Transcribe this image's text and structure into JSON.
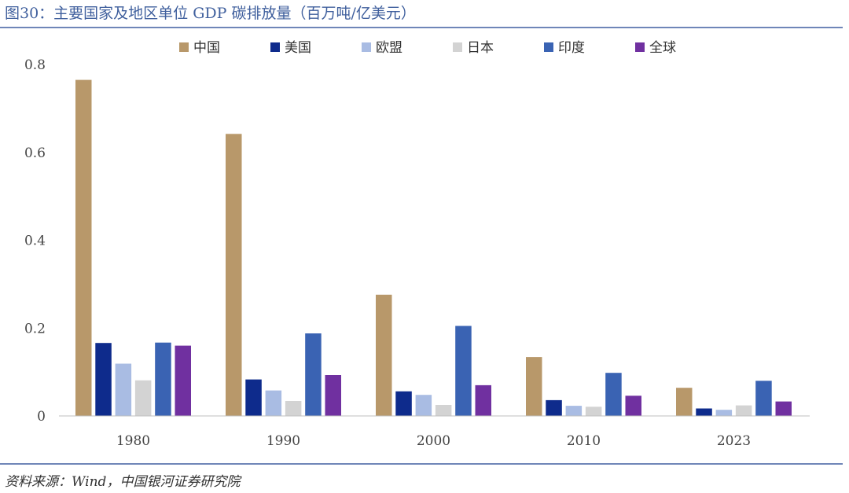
{
  "title": "图30：主要国家及地区单位 GDP 碳排放量（百万吨/亿美元）",
  "source": "资料来源：Wind，中国银河证券研究院",
  "chart_data": {
    "type": "bar",
    "title": "图30：主要国家及地区单位 GDP 碳排放量（百万吨/亿美元）",
    "xlabel": "",
    "ylabel": "",
    "ylim": [
      0,
      0.8
    ],
    "yticks": [
      "0",
      "0.2",
      "0.4",
      "0.6",
      "0.8"
    ],
    "grid": false,
    "legend_position": "top",
    "categories": [
      "1980",
      "1990",
      "2000",
      "2010",
      "2023"
    ],
    "series": [
      {
        "name": "中国",
        "color": "#b8986a",
        "values": [
          0.765,
          0.642,
          0.276,
          0.134,
          0.064
        ]
      },
      {
        "name": "美国",
        "color": "#0e2b8c",
        "values": [
          0.166,
          0.083,
          0.056,
          0.036,
          0.017
        ]
      },
      {
        "name": "欧盟",
        "color": "#a9bce3",
        "values": [
          0.119,
          0.058,
          0.048,
          0.023,
          0.014
        ]
      },
      {
        "name": "日本",
        "color": "#d3d3d3",
        "values": [
          0.081,
          0.034,
          0.025,
          0.021,
          0.024
        ]
      },
      {
        "name": "印度",
        "color": "#3a63b3",
        "values": [
          0.167,
          0.188,
          0.205,
          0.098,
          0.08
        ]
      },
      {
        "name": "全球",
        "color": "#7030a0",
        "values": [
          0.16,
          0.093,
          0.07,
          0.046,
          0.033
        ]
      }
    ]
  }
}
